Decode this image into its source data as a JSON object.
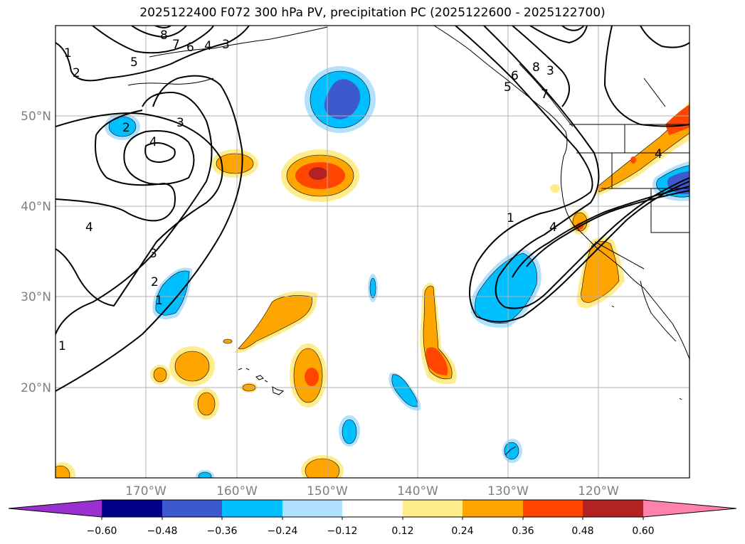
{
  "title": "2025122400 F072 300 hPa PV, precipitation PC (2025122600 - 2025122700)",
  "colors": {
    "neg5": "#9b30d0",
    "neg4": "#00008b",
    "neg3": "#3c5acd",
    "neg2": "#00bfff",
    "neg1": "#b0e2ff",
    "zero": "#ffffff",
    "pos1": "#ffec8b",
    "pos2": "#ffa500",
    "pos3": "#ff4500",
    "pos4": "#b22222",
    "pos5": "#ff82ab",
    "gridline": "#b0b0b0",
    "contour": "#000000",
    "coast": "#000000"
  },
  "map": {
    "lon_range": [
      -180,
      -110
    ],
    "lat_range": [
      10,
      60
    ],
    "lon_ticks": [
      "170°W",
      "160°W",
      "150°W",
      "140°W",
      "130°W",
      "120°W"
    ],
    "lat_ticks": [
      "20°N",
      "30°N",
      "40°N",
      "50°N"
    ]
  },
  "colorbar": {
    "ticks": [
      "−0.60",
      "−0.48",
      "−0.36",
      "−0.24",
      "−0.12",
      "0.12",
      "0.24",
      "0.36",
      "0.48",
      "0.60"
    ]
  },
  "pv_labels": [
    "1",
    "2",
    "3",
    "4",
    "5",
    "6",
    "7",
    "8",
    "1",
    "2",
    "3",
    "4",
    "1",
    "2",
    "3",
    "4",
    "5",
    "6",
    "7",
    "8",
    "3",
    "1",
    "4",
    "4"
  ]
}
